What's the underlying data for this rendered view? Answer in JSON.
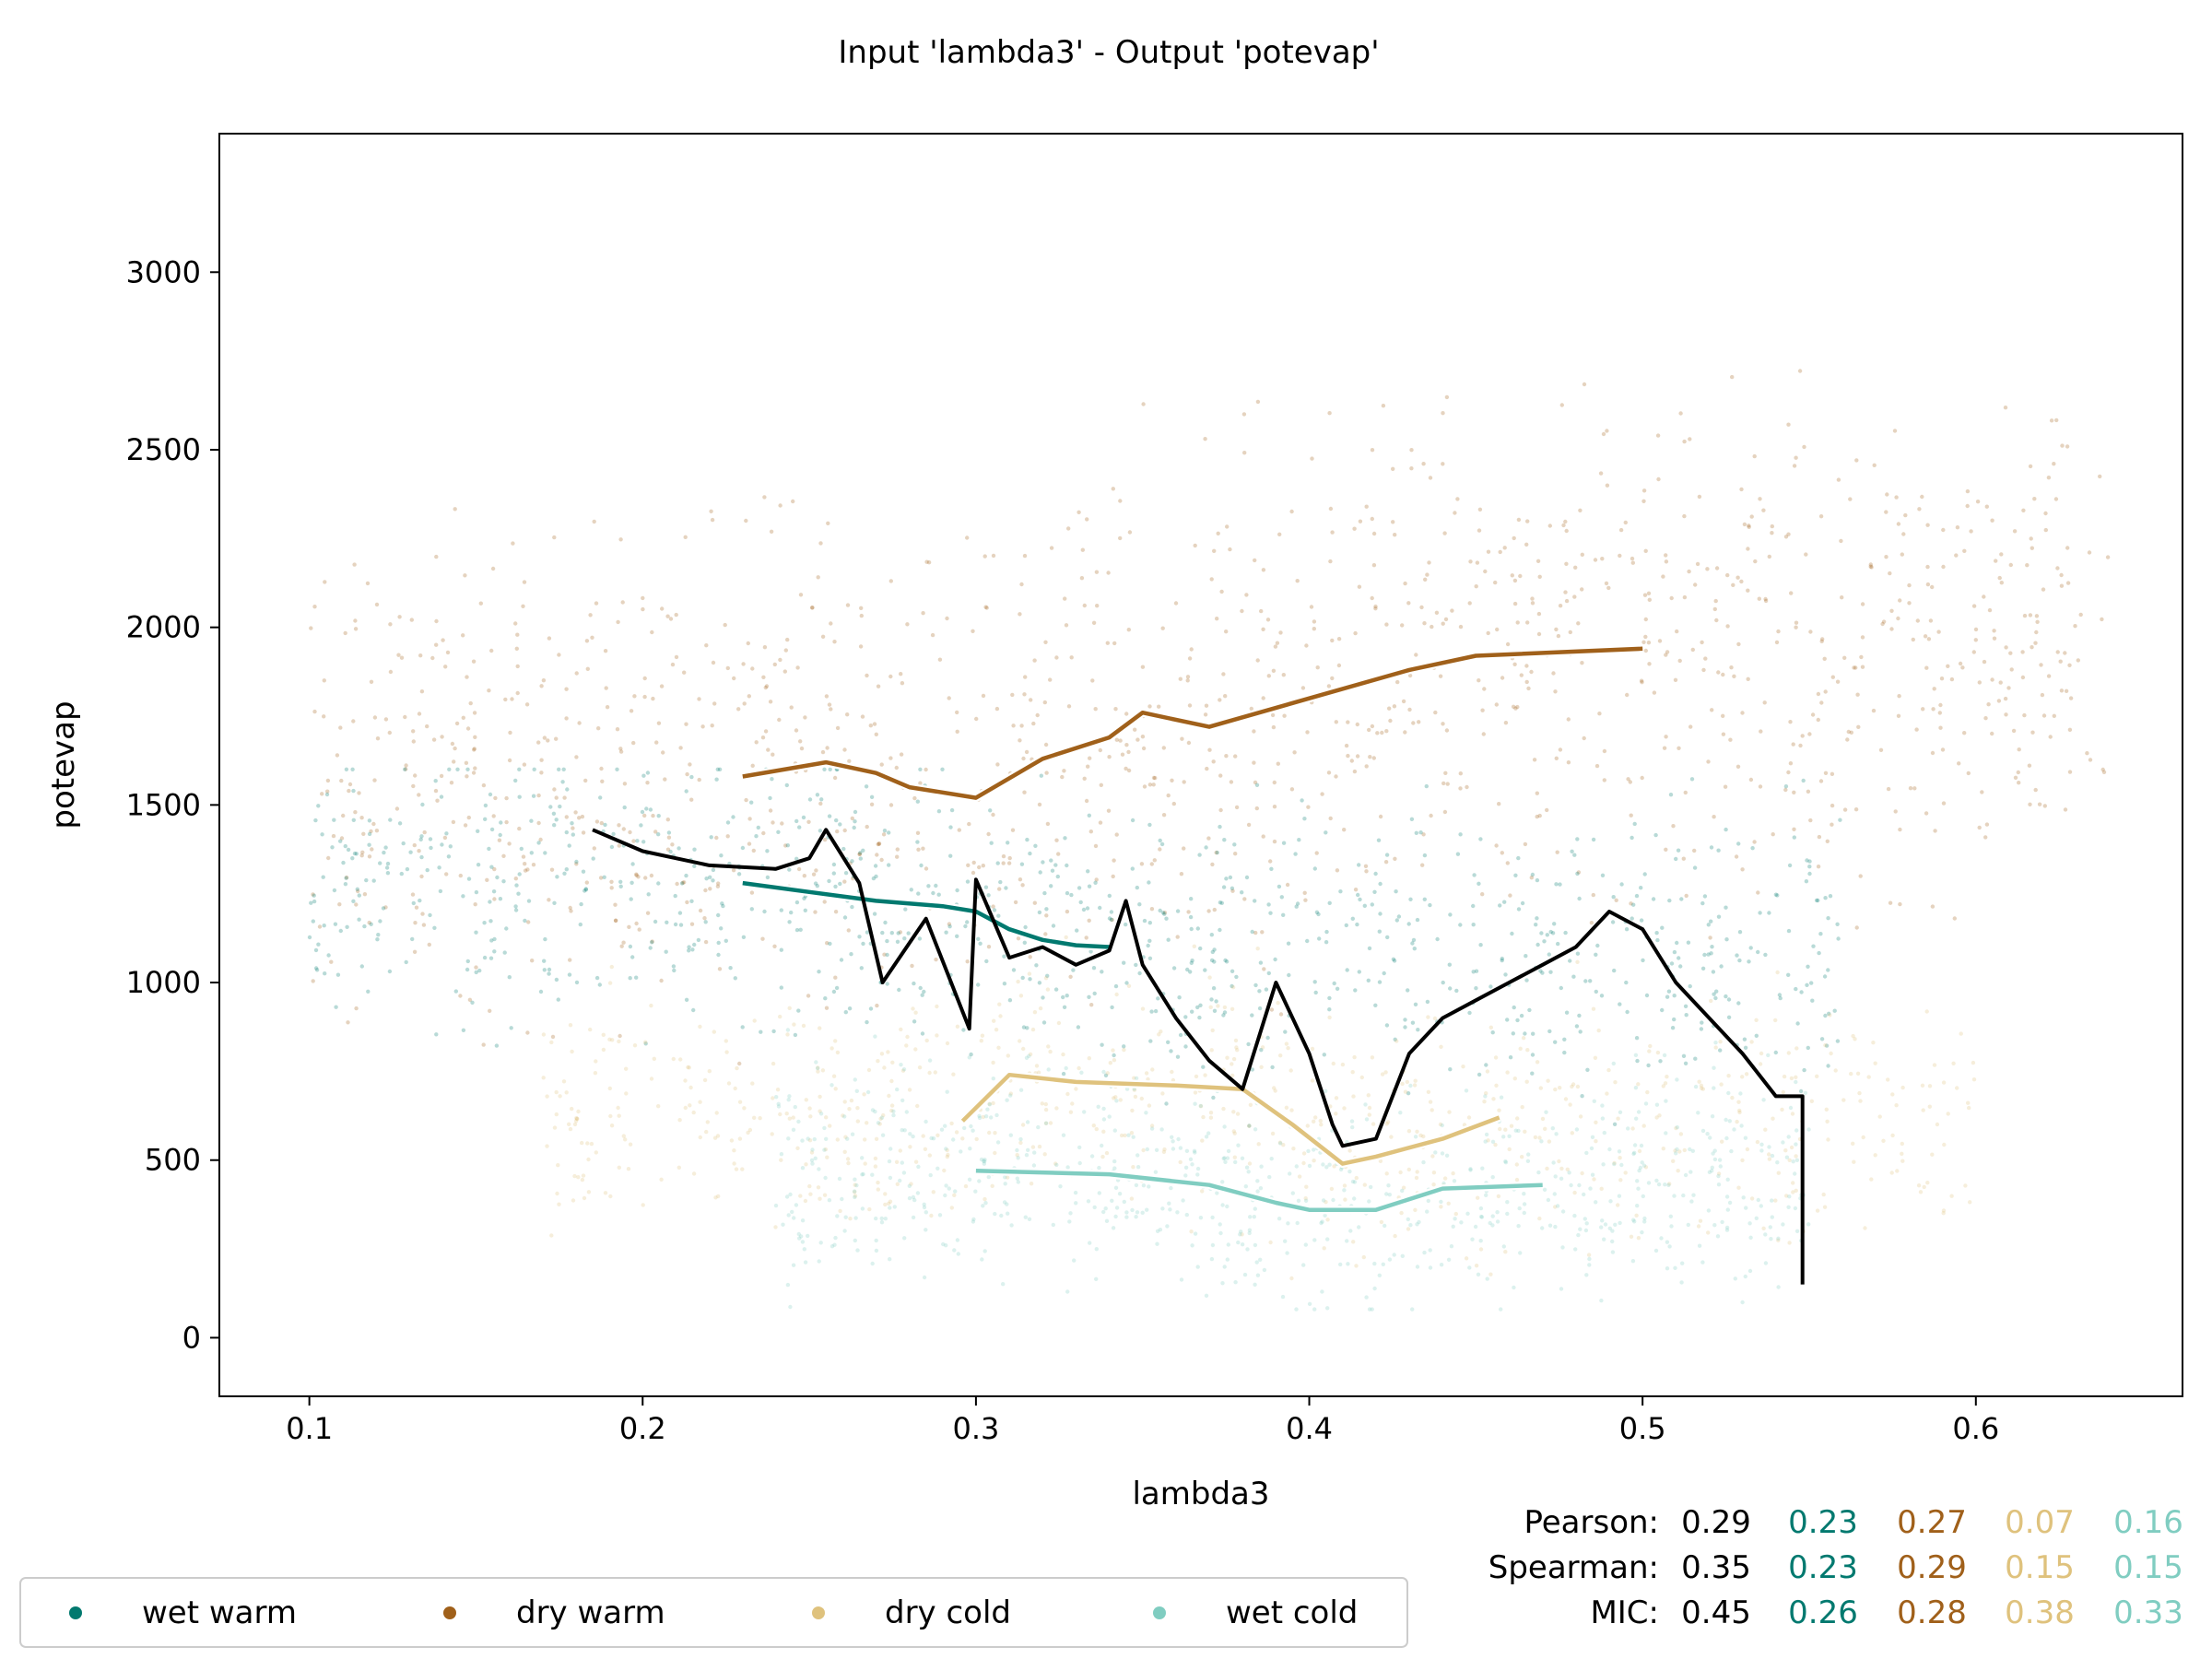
{
  "chart_data": {
    "type": "scatter",
    "title": "Input 'lambda3' - Output 'potevap'",
    "xlabel": "lambda3",
    "ylabel": "potevap",
    "xlim": [
      0.073,
      0.662
    ],
    "ylim": [
      -165,
      3390
    ],
    "xticks": [
      0.1,
      0.2,
      0.3,
      0.4,
      0.5,
      0.6
    ],
    "xtick_labels": [
      "0.1",
      "0.2",
      "0.3",
      "0.4",
      "0.5",
      "0.6"
    ],
    "yticks": [
      0,
      500,
      1000,
      1500,
      2000,
      2500,
      3000
    ],
    "ytick_labels": [
      "0",
      "500",
      "1000",
      "1500",
      "2000",
      "2500",
      "3000"
    ],
    "grid": false,
    "legend_position": "bottom-left",
    "colors": {
      "overall": "#000000",
      "wet_warm": "#01796f",
      "dry_warm": "#a0601a",
      "dry_cold": "#dfc27d",
      "wet_cold": "#80cdc1"
    },
    "series": [
      {
        "name": "wet warm",
        "color": "#01796f",
        "scatter_cloud": {
          "x_range": [
            0.1,
            0.56
          ],
          "y_range": [
            100,
            1600
          ]
        },
        "trend_x": [
          0.23,
          0.25,
          0.27,
          0.29,
          0.3,
          0.31,
          0.32,
          0.33,
          0.34
        ],
        "trend_y": [
          1280,
          1255,
          1230,
          1215,
          1200,
          1150,
          1120,
          1105,
          1100
        ]
      },
      {
        "name": "dry warm",
        "color": "#a0601a",
        "scatter_cloud": {
          "x_range": [
            0.1,
            0.64
          ],
          "y_range": [
            400,
            3200
          ]
        },
        "trend_x": [
          0.23,
          0.255,
          0.27,
          0.28,
          0.3,
          0.32,
          0.34,
          0.35,
          0.37,
          0.4,
          0.43,
          0.45,
          0.5
        ],
        "trend_y": [
          1580,
          1620,
          1590,
          1550,
          1520,
          1630,
          1690,
          1760,
          1720,
          1800,
          1880,
          1920,
          1940
        ]
      },
      {
        "name": "dry cold",
        "color": "#dfc27d",
        "scatter_cloud": {
          "x_range": [
            0.17,
            0.6
          ],
          "y_range": [
            150,
            1300
          ]
        },
        "trend_x": [
          0.296,
          0.31,
          0.33,
          0.36,
          0.38,
          0.395,
          0.41,
          0.42,
          0.44,
          0.457
        ],
        "trend_y": [
          610,
          740,
          720,
          710,
          700,
          600,
          490,
          510,
          560,
          620
        ]
      },
      {
        "name": "wet cold",
        "color": "#80cdc1",
        "scatter_cloud": {
          "x_range": [
            0.24,
            0.55
          ],
          "y_range": [
            80,
            1000
          ]
        },
        "trend_x": [
          0.3,
          0.34,
          0.37,
          0.39,
          0.4,
          0.42,
          0.44,
          0.47
        ],
        "trend_y": [
          470,
          460,
          430,
          380,
          360,
          360,
          420,
          430
        ]
      },
      {
        "name": "",
        "color": "#000000",
        "trend_x": [
          0.185,
          0.2,
          0.22,
          0.24,
          0.25,
          0.255,
          0.265,
          0.272,
          0.285,
          0.298,
          0.3,
          0.31,
          0.32,
          0.33,
          0.34,
          0.345,
          0.35,
          0.36,
          0.37,
          0.38,
          0.39,
          0.4,
          0.407,
          0.41,
          0.42,
          0.43,
          0.44,
          0.45,
          0.46,
          0.47,
          0.48,
          0.49,
          0.5,
          0.51,
          0.52,
          0.53,
          0.54,
          0.548,
          0.548
        ],
        "trend_y": [
          1430,
          1370,
          1330,
          1320,
          1350,
          1430,
          1280,
          1000,
          1180,
          870,
          1290,
          1070,
          1100,
          1050,
          1090,
          1230,
          1050,
          900,
          780,
          700,
          1000,
          800,
          600,
          540,
          560,
          800,
          900,
          950,
          1000,
          1050,
          1100,
          1200,
          1150,
          1000,
          900,
          800,
          680,
          680,
          150
        ]
      }
    ],
    "stats": {
      "rows": [
        {
          "label": "Pearson:",
          "values": [
            "0.29",
            "0.23",
            "0.27",
            "0.07",
            "0.16"
          ]
        },
        {
          "label": "Spearman:",
          "values": [
            "0.35",
            "0.23",
            "0.29",
            "0.15",
            "0.15"
          ]
        },
        {
          "label": "MIC:",
          "values": [
            "0.45",
            "0.26",
            "0.28",
            "0.38",
            "0.33"
          ]
        }
      ],
      "column_colors": [
        "#000000",
        "#01796f",
        "#a0601a",
        "#dfc27d",
        "#80cdc1"
      ]
    }
  }
}
